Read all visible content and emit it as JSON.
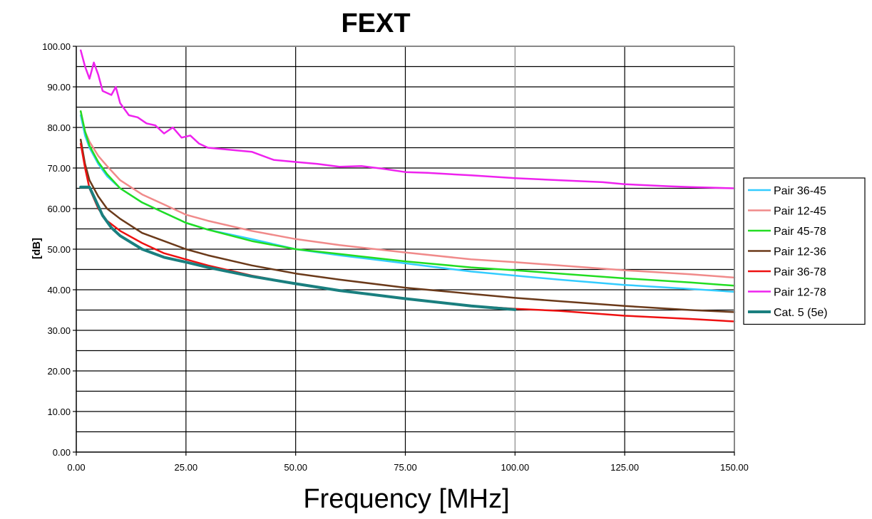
{
  "chart_data": {
    "type": "line",
    "title": "FEXT",
    "xlabel": "Frequency [MHz]",
    "ylabel": "[dB]",
    "xlim": [
      0,
      150
    ],
    "ylim": [
      0,
      100
    ],
    "x_ticks": [
      "0.00",
      "25.00",
      "50.00",
      "75.00",
      "100.00",
      "125.00",
      "150.00"
    ],
    "y_ticks": [
      "0.00",
      "10.00",
      "20.00",
      "30.00",
      "40.00",
      "50.00",
      "60.00",
      "70.00",
      "80.00",
      "90.00",
      "100.00"
    ],
    "grid": true,
    "legend_position": "right",
    "series": [
      {
        "name": "Pair 36-45",
        "color": "#33ccff",
        "points": [
          [
            1,
            83
          ],
          [
            2,
            78
          ],
          [
            3,
            75
          ],
          [
            5,
            71
          ],
          [
            7,
            68
          ],
          [
            10,
            65
          ],
          [
            15,
            61.5
          ],
          [
            20,
            59
          ],
          [
            25,
            56.5
          ],
          [
            30,
            54.8
          ],
          [
            40,
            52.5
          ],
          [
            50,
            50
          ],
          [
            60,
            48.5
          ],
          [
            75,
            46.5
          ],
          [
            90,
            44.5
          ],
          [
            100,
            43.5
          ],
          [
            110,
            42.5
          ],
          [
            125,
            41.2
          ],
          [
            140,
            40.2
          ],
          [
            150,
            39.5
          ]
        ]
      },
      {
        "name": "Pair 12-45",
        "color": "#f08a8a",
        "points": [
          [
            1,
            84
          ],
          [
            2,
            79
          ],
          [
            3,
            76.5
          ],
          [
            5,
            73
          ],
          [
            7,
            70.5
          ],
          [
            10,
            67
          ],
          [
            15,
            63.5
          ],
          [
            20,
            61
          ],
          [
            25,
            58.5
          ],
          [
            30,
            57
          ],
          [
            40,
            54.5
          ],
          [
            50,
            52.5
          ],
          [
            60,
            51
          ],
          [
            75,
            49.2
          ],
          [
            90,
            47.5
          ],
          [
            100,
            46.8
          ],
          [
            110,
            46
          ],
          [
            125,
            44.8
          ],
          [
            140,
            43.8
          ],
          [
            150,
            43
          ]
        ]
      },
      {
        "name": "Pair 45-78",
        "color": "#22dd22",
        "points": [
          [
            1,
            84
          ],
          [
            2,
            79
          ],
          [
            3,
            75.5
          ],
          [
            5,
            71.5
          ],
          [
            7,
            68.5
          ],
          [
            10,
            65
          ],
          [
            15,
            61.5
          ],
          [
            20,
            59
          ],
          [
            25,
            56.5
          ],
          [
            30,
            54.8
          ],
          [
            40,
            52
          ],
          [
            50,
            50
          ],
          [
            60,
            48.8
          ],
          [
            75,
            47
          ],
          [
            90,
            45.5
          ],
          [
            100,
            44.8
          ],
          [
            110,
            44
          ],
          [
            125,
            42.8
          ],
          [
            140,
            41.8
          ],
          [
            150,
            41
          ]
        ]
      },
      {
        "name": "Pair 12-36",
        "color": "#6b3a1a",
        "points": [
          [
            1,
            77
          ],
          [
            2,
            71
          ],
          [
            3,
            67
          ],
          [
            5,
            63
          ],
          [
            7,
            60
          ],
          [
            10,
            57.5
          ],
          [
            15,
            54
          ],
          [
            20,
            52
          ],
          [
            25,
            50
          ],
          [
            30,
            48.5
          ],
          [
            40,
            46
          ],
          [
            50,
            44
          ],
          [
            60,
            42.5
          ],
          [
            75,
            40.5
          ],
          [
            90,
            39
          ],
          [
            100,
            38
          ],
          [
            110,
            37.2
          ],
          [
            125,
            36
          ],
          [
            140,
            35
          ],
          [
            150,
            34.5
          ]
        ]
      },
      {
        "name": "Pair 36-78",
        "color": "#ee1111",
        "points": [
          [
            1,
            76
          ],
          [
            2,
            70
          ],
          [
            3,
            65
          ],
          [
            5,
            60
          ],
          [
            7,
            57
          ],
          [
            10,
            54.5
          ],
          [
            15,
            51.5
          ],
          [
            20,
            49
          ],
          [
            25,
            47.5
          ],
          [
            30,
            46
          ],
          [
            40,
            43.5
          ],
          [
            50,
            41.5
          ],
          [
            60,
            39.8
          ],
          [
            75,
            37.8
          ],
          [
            90,
            36
          ],
          [
            100,
            35.3
          ],
          [
            110,
            34.8
          ],
          [
            125,
            33.6
          ],
          [
            140,
            32.8
          ],
          [
            150,
            32.2
          ]
        ]
      },
      {
        "name": "Pair 12-78",
        "color": "#ee22ee",
        "points": [
          [
            1,
            99
          ],
          [
            2,
            95
          ],
          [
            3,
            92
          ],
          [
            4,
            96
          ],
          [
            5,
            93
          ],
          [
            6,
            89
          ],
          [
            8,
            88
          ],
          [
            9,
            90
          ],
          [
            10,
            86
          ],
          [
            12,
            83
          ],
          [
            14,
            82.5
          ],
          [
            16,
            81
          ],
          [
            18,
            80.5
          ],
          [
            20,
            78.5
          ],
          [
            22,
            80
          ],
          [
            24,
            77.5
          ],
          [
            26,
            78
          ],
          [
            28,
            76
          ],
          [
            30,
            75
          ],
          [
            35,
            74.5
          ],
          [
            40,
            74
          ],
          [
            45,
            72
          ],
          [
            50,
            71.5
          ],
          [
            55,
            71
          ],
          [
            60,
            70.3
          ],
          [
            65,
            70.5
          ],
          [
            70,
            69.8
          ],
          [
            75,
            69
          ],
          [
            80,
            68.8
          ],
          [
            90,
            68.2
          ],
          [
            100,
            67.5
          ],
          [
            110,
            67
          ],
          [
            120,
            66.5
          ],
          [
            125,
            66
          ],
          [
            135,
            65.5
          ],
          [
            140,
            65.3
          ],
          [
            150,
            65
          ]
        ]
      },
      {
        "name": "Cat. 5 (5e)",
        "color": "#1a7f7f",
        "points": [
          [
            1,
            65.3
          ],
          [
            3,
            65.3
          ],
          [
            4,
            63
          ],
          [
            6,
            58.3
          ],
          [
            8,
            55.3
          ],
          [
            10,
            53.3
          ],
          [
            15,
            50
          ],
          [
            20,
            48
          ],
          [
            25,
            46.8
          ],
          [
            30,
            45.5
          ],
          [
            40,
            43.3
          ],
          [
            50,
            41.5
          ],
          [
            60,
            39.8
          ],
          [
            75,
            37.8
          ],
          [
            90,
            36
          ],
          [
            100,
            35.1
          ]
        ]
      }
    ]
  }
}
